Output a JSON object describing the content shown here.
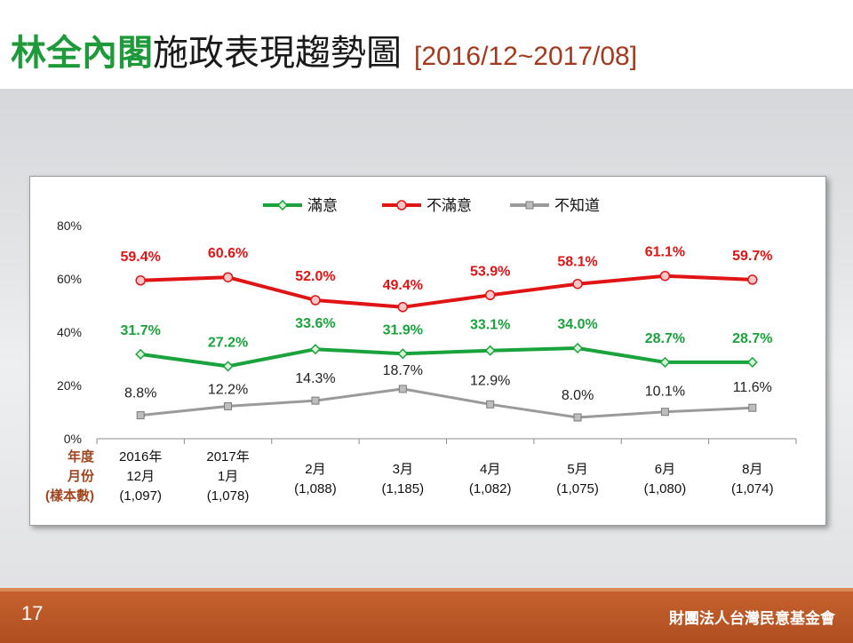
{
  "header": {
    "title_green": "林全內閣",
    "title_black": "施政表現趨勢圖",
    "date_range": "[2016/12~2017/08]"
  },
  "footer": {
    "page_number": "17",
    "organization": "財團法人台灣民意基金會"
  },
  "chart_data": {
    "type": "line",
    "ylim": [
      0,
      80
    ],
    "yticks": [
      "0%",
      "20%",
      "40%",
      "60%",
      "80%"
    ],
    "row_labels": [
      "年度",
      "月份",
      "(樣本數)"
    ],
    "categories": [
      {
        "year": "2016年",
        "month": "12月",
        "sample": "(1,097)"
      },
      {
        "year": "2017年",
        "month": "1月",
        "sample": "(1,078)"
      },
      {
        "year": "",
        "month": "2月",
        "sample": "(1,088)"
      },
      {
        "year": "",
        "month": "3月",
        "sample": "(1,185)"
      },
      {
        "year": "",
        "month": "4月",
        "sample": "(1,082)"
      },
      {
        "year": "",
        "month": "5月",
        "sample": "(1,075)"
      },
      {
        "year": "",
        "month": "6月",
        "sample": "(1,080)"
      },
      {
        "year": "",
        "month": "8月",
        "sample": "(1,074)"
      }
    ],
    "series": [
      {
        "name": "滿意",
        "color": "#1aa33c",
        "marker": "diamond",
        "values": [
          31.7,
          27.2,
          33.6,
          31.9,
          33.1,
          34.0,
          28.7,
          28.7
        ],
        "labels": [
          "31.7%",
          "27.2%",
          "33.6%",
          "31.9%",
          "33.1%",
          "34.0%",
          "28.7%",
          "28.7%"
        ]
      },
      {
        "name": "不滿意",
        "color": "#e01414",
        "marker": "circle",
        "values": [
          59.4,
          60.6,
          52.0,
          49.4,
          53.9,
          58.1,
          61.1,
          59.7
        ],
        "labels": [
          "59.4%",
          "60.6%",
          "52.0%",
          "49.4%",
          "53.9%",
          "58.1%",
          "61.1%",
          "59.7%"
        ]
      },
      {
        "name": "不知道",
        "color": "#9a9a9a",
        "marker": "square",
        "values": [
          8.8,
          12.2,
          14.3,
          18.7,
          12.9,
          8.0,
          10.1,
          11.6
        ],
        "labels": [
          "8.8%",
          "12.2%",
          "14.3%",
          "18.7%",
          "12.9%",
          "8.0%",
          "10.1%",
          "11.6%"
        ]
      }
    ],
    "legend": "top"
  }
}
